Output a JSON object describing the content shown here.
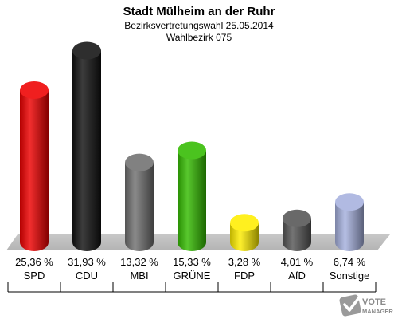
{
  "chart_data": {
    "type": "bar",
    "title": "Stadt Mülheim an der Ruhr",
    "subtitle": "Bezirksvertretungswahl 25.05.2014",
    "subtitle2": "Wahlbezirk 075",
    "categories": [
      "SPD",
      "CDU",
      "MBI",
      "GRÜNE",
      "FDP",
      "AfD",
      "Sonstige"
    ],
    "values": [
      25.36,
      31.93,
      13.32,
      15.33,
      3.28,
      4.01,
      6.74
    ],
    "value_labels": [
      "25,36 %",
      "31,93 %",
      "13,32 %",
      "15,33 %",
      "3,28 %",
      "4,01 %",
      "6,74 %"
    ],
    "colors": [
      "#ee0000",
      "#111111",
      "#707070",
      "#33bb00",
      "#ffee00",
      "#555555",
      "#a6b1de"
    ],
    "ylim": [
      0,
      32
    ],
    "grid": false,
    "legend": "none"
  },
  "logo": {
    "line1": "VOTE",
    "line2": "MANAGER"
  }
}
